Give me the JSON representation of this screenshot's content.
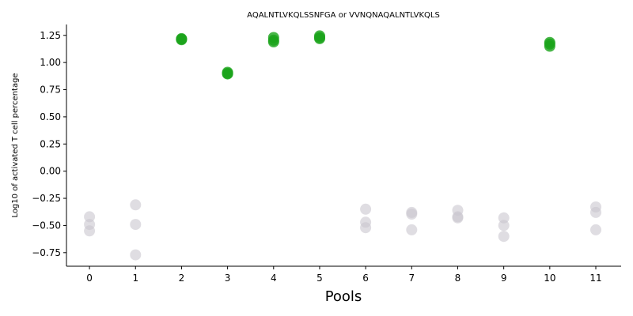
{
  "chart_data": {
    "type": "scatter",
    "title": "AQALNTLVKQLSSNFGA or VVNQNAQALNTLVKQLS",
    "xlabel": "Pools",
    "ylabel": "Log10 of activated T cell percentage",
    "xlim": [
      -0.5,
      11.55
    ],
    "ylim": [
      -0.875,
      1.35
    ],
    "xticks": [
      0,
      1,
      2,
      3,
      4,
      5,
      6,
      7,
      8,
      9,
      10,
      11
    ],
    "yticks": [
      -0.75,
      -0.5,
      -0.25,
      0.0,
      0.25,
      0.5,
      0.75,
      1.0,
      1.25
    ],
    "ytick_labels": [
      "−0.75",
      "−0.50",
      "−0.25",
      "0.00",
      "0.25",
      "0.50",
      "0.75",
      "1.00",
      "1.25"
    ],
    "grid": false,
    "series": [
      {
        "color": "#1aa41a",
        "points": [
          {
            "x": 2,
            "y": 1.22
          },
          {
            "x": 2,
            "y": 1.215
          },
          {
            "x": 2,
            "y": 1.21
          },
          {
            "x": 3,
            "y": 0.91
          },
          {
            "x": 3,
            "y": 0.9
          },
          {
            "x": 3,
            "y": 0.895
          },
          {
            "x": 4,
            "y": 1.23
          },
          {
            "x": 4,
            "y": 1.205
          },
          {
            "x": 4,
            "y": 1.19
          },
          {
            "x": 5,
            "y": 1.245
          },
          {
            "x": 5,
            "y": 1.23
          },
          {
            "x": 5,
            "y": 1.22
          },
          {
            "x": 10,
            "y": 1.185
          },
          {
            "x": 10,
            "y": 1.17
          },
          {
            "x": 10,
            "y": 1.15
          }
        ]
      },
      {
        "color": "#c9c7cf",
        "points": [
          {
            "x": 0,
            "y": -0.42
          },
          {
            "x": 0,
            "y": -0.49
          },
          {
            "x": 0,
            "y": -0.55
          },
          {
            "x": 1,
            "y": -0.31
          },
          {
            "x": 1,
            "y": -0.49
          },
          {
            "x": 1,
            "y": -0.77
          },
          {
            "x": 6,
            "y": -0.35
          },
          {
            "x": 6,
            "y": -0.47
          },
          {
            "x": 6,
            "y": -0.52
          },
          {
            "x": 7,
            "y": -0.38
          },
          {
            "x": 7,
            "y": -0.395
          },
          {
            "x": 7,
            "y": -0.54
          },
          {
            "x": 8,
            "y": -0.36
          },
          {
            "x": 8,
            "y": -0.42
          },
          {
            "x": 8,
            "y": -0.43
          },
          {
            "x": 9,
            "y": -0.43
          },
          {
            "x": 9,
            "y": -0.5
          },
          {
            "x": 9,
            "y": -0.6
          },
          {
            "x": 11,
            "y": -0.33
          },
          {
            "x": 11,
            "y": -0.38
          },
          {
            "x": 11,
            "y": -0.54
          }
        ]
      }
    ]
  }
}
